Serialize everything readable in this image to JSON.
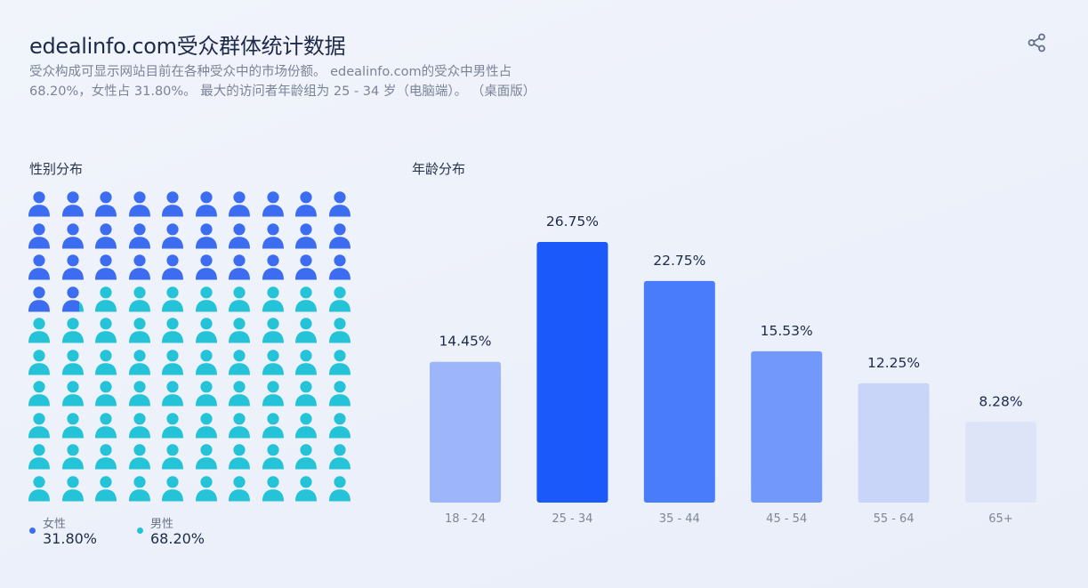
{
  "header": {
    "title": "edealinfo.com受众群体统计数据",
    "description": "受众构成可显示网站目前在各种受众中的市场份额。 edealinfo.com的受众中男性占68.20%，女性占 31.80%。 最大的访问者年龄组为 25 - 34 岁（电脑端）。 （桌面版）",
    "share_icon": "share-icon"
  },
  "gender": {
    "title": "性别分布",
    "female_label": "女性",
    "female_value": "31.80%",
    "male_label": "男性",
    "male_value": "68.20%",
    "female_color": "#3c6cf0",
    "male_color": "#25c3d8",
    "icon": "person-icon"
  },
  "age": {
    "title": "年龄分布"
  },
  "chart_data": [
    {
      "type": "pictogram",
      "title": "性别分布",
      "series": [
        {
          "name": "女性",
          "value": 31.8,
          "color": "#3c6cf0"
        },
        {
          "name": "男性",
          "value": 68.2,
          "color": "#25c3d8"
        }
      ],
      "units_total": 100
    },
    {
      "type": "bar",
      "title": "年龄分布",
      "categories": [
        "18 - 24",
        "25 - 34",
        "35 - 44",
        "45 - 54",
        "55 - 64",
        "65+"
      ],
      "values": [
        14.45,
        26.75,
        22.75,
        15.53,
        12.25,
        8.28
      ],
      "value_labels": [
        "14.45%",
        "26.75%",
        "22.75%",
        "15.53%",
        "12.25%",
        "8.28%"
      ],
      "colors": [
        "#9db5fa",
        "#1b59fb",
        "#497cfb",
        "#7398fb",
        "#c8d4f8",
        "#dde4f7"
      ],
      "ylim": [
        0,
        26.75
      ],
      "grid": false,
      "legend": "none"
    }
  ]
}
